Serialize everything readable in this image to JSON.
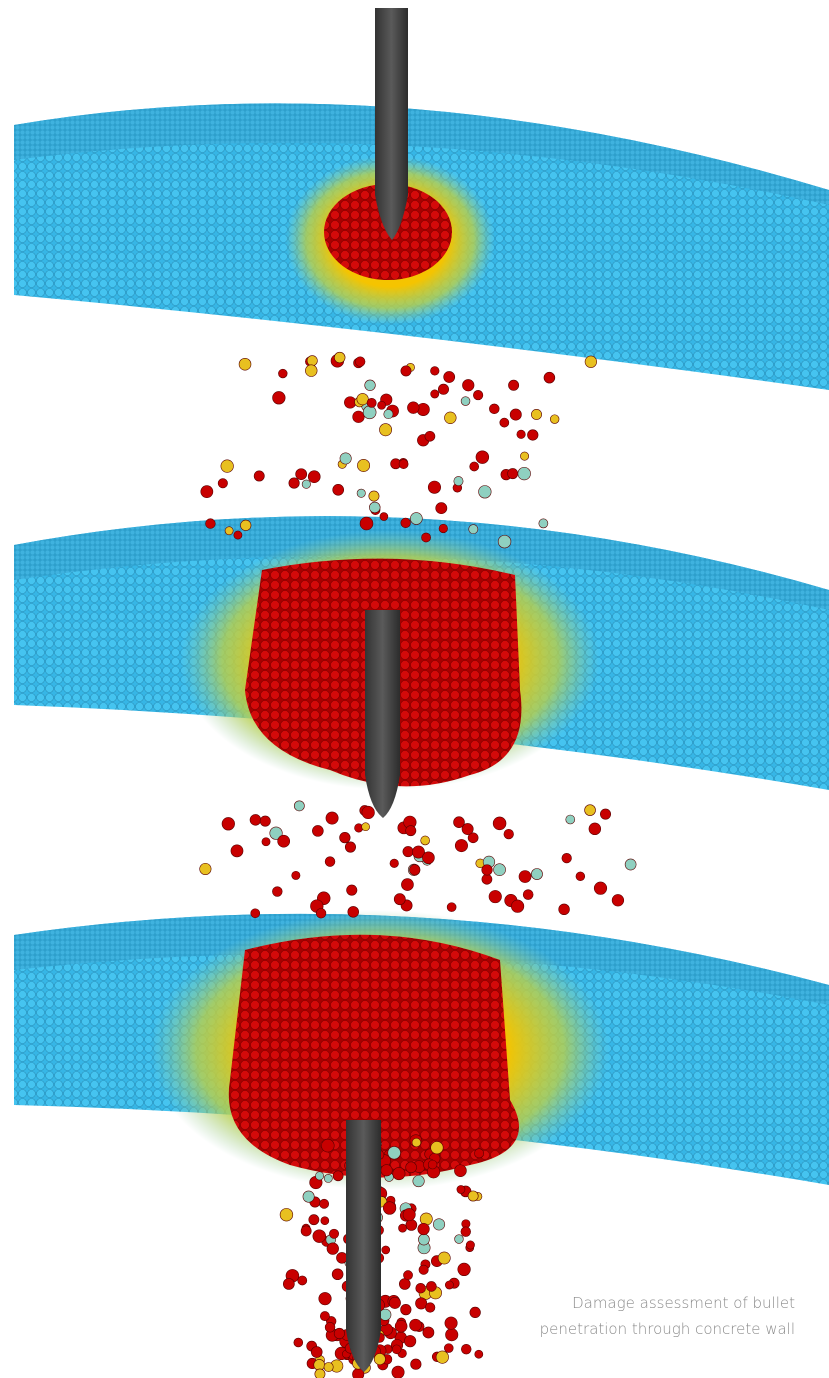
{
  "caption": {
    "lines": [
      "Damage assessment of bullet",
      "penetration through concrete wall"
    ]
  }
}
